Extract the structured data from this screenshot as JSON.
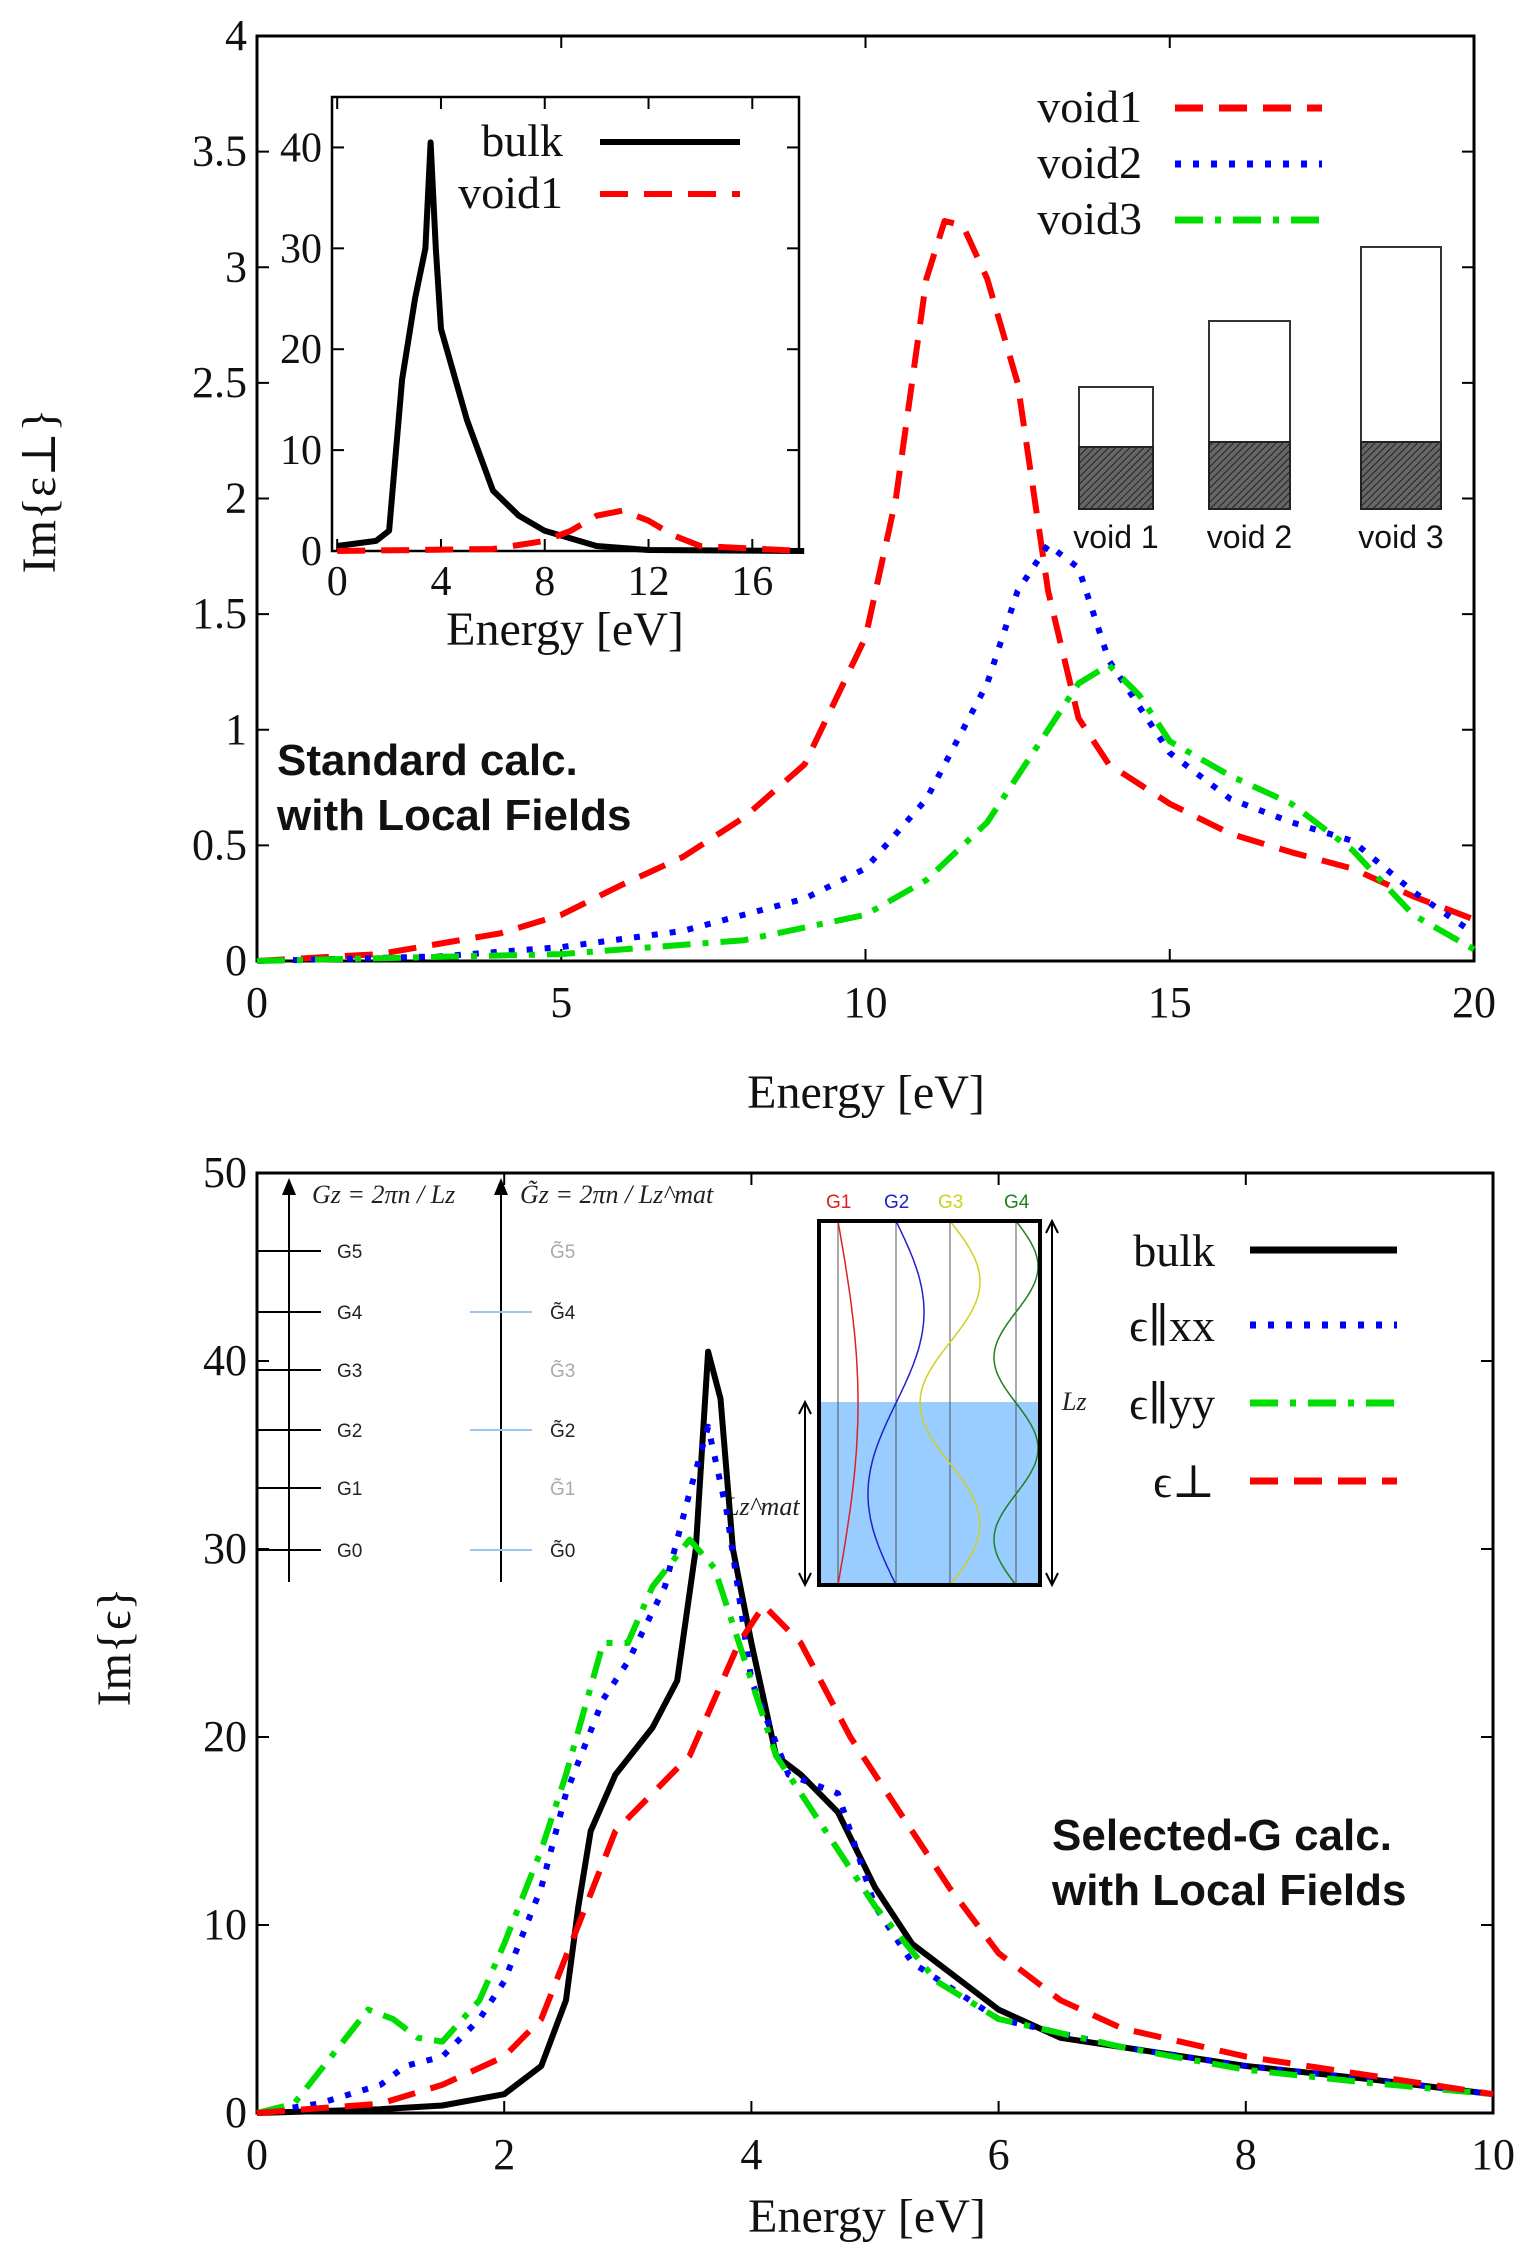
{
  "chart_data": [
    {
      "type": "line",
      "xlabel": "Energy [eV]",
      "ylabel": "Im{ε⊥}",
      "xlim": [
        0,
        20
      ],
      "ylim": [
        0,
        4
      ],
      "xticks": [
        "0",
        "5",
        "10",
        "15",
        "20"
      ],
      "yticks": [
        "0",
        "0.5",
        "1",
        "1.5",
        "2",
        "2.5",
        "3",
        "3.5",
        "4"
      ],
      "annotation": [
        "Standard calc.",
        "with Local Fields"
      ],
      "legend_position": "top-right",
      "series": [
        {
          "name": "void1",
          "color": "#ff0000",
          "style": "dashed",
          "x": [
            0,
            2,
            4,
            5,
            6,
            7,
            8,
            9,
            10,
            10.5,
            11,
            11.3,
            11.6,
            12,
            12.5,
            13,
            13.5,
            14,
            15,
            16,
            17,
            18,
            19,
            20
          ],
          "y": [
            0,
            0.03,
            0.12,
            0.2,
            0.33,
            0.45,
            0.62,
            0.85,
            1.4,
            2.0,
            2.95,
            3.2,
            3.18,
            2.95,
            2.5,
            1.6,
            1.05,
            0.85,
            0.68,
            0.55,
            0.47,
            0.4,
            0.28,
            0.18
          ]
        },
        {
          "name": "void2",
          "color": "#0000ff",
          "style": "dotted",
          "x": [
            0,
            3,
            5,
            7,
            9,
            10,
            11,
            12,
            12.5,
            13,
            13.5,
            14,
            15,
            16,
            17,
            18,
            19,
            20
          ],
          "y": [
            0,
            0.02,
            0.06,
            0.13,
            0.27,
            0.4,
            0.7,
            1.2,
            1.6,
            1.8,
            1.7,
            1.3,
            0.9,
            0.7,
            0.6,
            0.52,
            0.3,
            0.12
          ]
        },
        {
          "name": "void3",
          "color": "#00dd00",
          "style": "dashdot",
          "x": [
            0,
            5,
            8,
            10,
            11,
            12,
            13,
            13.5,
            14,
            14.5,
            15,
            16,
            17,
            18,
            19,
            20
          ],
          "y": [
            0,
            0.03,
            0.09,
            0.2,
            0.35,
            0.6,
            1.0,
            1.2,
            1.28,
            1.15,
            0.95,
            0.8,
            0.68,
            0.48,
            0.2,
            0.05
          ]
        }
      ],
      "schematic": {
        "labels": [
          "void 1",
          "void 2",
          "void 3"
        ]
      },
      "inset": {
        "type": "line",
        "xlabel": "Energy [eV]",
        "xlim": [
          0,
          18
        ],
        "ylim": [
          0,
          45
        ],
        "xticks": [
          "0",
          "4",
          "8",
          "12",
          "16"
        ],
        "yticks": [
          "0",
          "10",
          "20",
          "30",
          "40"
        ],
        "series": [
          {
            "name": "bulk",
            "color": "#000000",
            "style": "solid",
            "x": [
              0,
              1.5,
              2,
              2.5,
              3,
              3.4,
              3.6,
              3.8,
              4,
              5,
              6,
              7,
              8,
              10,
              12,
              18
            ],
            "y": [
              0.5,
              1,
              2,
              17,
              25,
              30,
              40.5,
              30,
              22,
              13,
              6,
              3.5,
              2,
              0.5,
              0.1,
              0
            ]
          },
          {
            "name": "void1",
            "color": "#ff0000",
            "style": "dashed",
            "x": [
              0,
              6,
              8,
              9,
              10,
              11,
              12,
              13,
              14,
              18
            ],
            "y": [
              0,
              0.2,
              1,
              2,
              3.5,
              4,
              3,
              1.5,
              0.5,
              0
            ]
          }
        ]
      }
    },
    {
      "type": "line",
      "xlabel": "Energy [eV]",
      "ylabel": "Im{ϵ}",
      "xlim": [
        0,
        10
      ],
      "ylim": [
        0,
        50
      ],
      "xticks": [
        "0",
        "2",
        "4",
        "6",
        "8",
        "10"
      ],
      "yticks": [
        "0",
        "10",
        "20",
        "30",
        "40",
        "50"
      ],
      "annotation": [
        "Selected-G calc.",
        "with Local Fields"
      ],
      "legend_position": "top-right",
      "series": [
        {
          "name": "bulk",
          "color": "#000000",
          "style": "solid",
          "x": [
            0,
            1,
            1.5,
            2,
            2.3,
            2.5,
            2.6,
            2.7,
            2.9,
            3.2,
            3.4,
            3.55,
            3.65,
            3.75,
            3.85,
            4,
            4.2,
            4.4,
            4.7,
            5,
            5.3,
            5.6,
            6,
            6.5,
            7,
            8,
            9,
            10
          ],
          "y": [
            0,
            0.2,
            0.4,
            1,
            2.5,
            6,
            11,
            15,
            18,
            20.5,
            23,
            30,
            40.5,
            38,
            30,
            25,
            19,
            18,
            16,
            12,
            9,
            7.5,
            5.5,
            4,
            3.5,
            2.5,
            1.8,
            1
          ]
        },
        {
          "name": "ϵ∥xx",
          "color": "#0000ff",
          "style": "dotted",
          "x": [
            0,
            0.5,
            1,
            1.2,
            1.5,
            1.8,
            2,
            2.3,
            2.5,
            2.8,
            3,
            3.3,
            3.5,
            3.65,
            3.8,
            4,
            4.3,
            4.7,
            5,
            5.3,
            6,
            7,
            8,
            9,
            10
          ],
          "y": [
            0,
            0.5,
            1.5,
            2.5,
            3,
            5,
            7,
            12,
            17,
            22,
            24,
            28,
            33,
            36.5,
            32,
            23,
            18,
            17,
            11,
            8,
            5,
            3.5,
            2.5,
            1.8,
            1
          ]
        },
        {
          "name": "ϵ∥yy",
          "color": "#00dd00",
          "style": "dashdot",
          "x": [
            0,
            0.3,
            0.6,
            0.9,
            1.1,
            1.3,
            1.5,
            1.8,
            2,
            2.3,
            2.5,
            2.8,
            3,
            3.2,
            3.5,
            3.7,
            3.9,
            4.2,
            4.6,
            5,
            5.5,
            6,
            7,
            8,
            9,
            10
          ],
          "y": [
            0,
            0.5,
            3,
            5.5,
            5,
            4,
            3.8,
            6,
            9,
            14,
            18,
            25,
            25,
            28,
            30.5,
            29,
            25,
            19,
            15,
            11,
            7,
            5,
            3.5,
            2.3,
            1.6,
            1
          ]
        },
        {
          "name": "ϵ⊥",
          "color": "#ff0000",
          "style": "dashed",
          "x": [
            0,
            1,
            1.5,
            2,
            2.3,
            2.6,
            2.9,
            3.2,
            3.5,
            3.7,
            3.9,
            4.1,
            4.4,
            4.8,
            5.2,
            5.6,
            6,
            6.5,
            7,
            8,
            9,
            10
          ],
          "y": [
            0,
            0.5,
            1.5,
            3,
            5,
            10,
            15,
            17,
            19,
            22,
            25,
            27,
            25,
            20,
            16,
            12,
            8.5,
            6,
            4.5,
            3,
            2,
            1
          ]
        }
      ],
      "schematic": {
        "formula_left": "Gz = 2πn / Lz",
        "formula_right": "G̃z = 2πn / Lz^mat",
        "levels_left": [
          "G5",
          "G4",
          "G3",
          "G2",
          "G1",
          "G0"
        ],
        "levels_right": [
          "G̃5",
          "G̃4",
          "G̃3",
          "G̃2",
          "G̃1",
          "G̃0"
        ],
        "wave_labels": [
          "G1",
          "G2",
          "G3",
          "G4"
        ],
        "wave_colors": [
          "#e02020",
          "#2020d0",
          "#d0d020",
          "#208020"
        ],
        "fill_color": "#99ccff",
        "lz": "Lz",
        "lz_mat": "Lz^mat"
      }
    }
  ]
}
